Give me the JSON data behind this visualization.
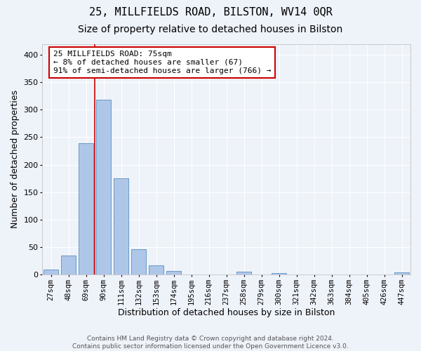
{
  "title": "25, MILLFIELDS ROAD, BILSTON, WV14 0QR",
  "subtitle": "Size of property relative to detached houses in Bilston",
  "xlabel": "Distribution of detached houses by size in Bilston",
  "ylabel": "Number of detached properties",
  "bar_labels": [
    "27sqm",
    "48sqm",
    "69sqm",
    "90sqm",
    "111sqm",
    "132sqm",
    "153sqm",
    "174sqm",
    "195sqm",
    "216sqm",
    "237sqm",
    "258sqm",
    "279sqm",
    "300sqm",
    "321sqm",
    "342sqm",
    "363sqm",
    "384sqm",
    "405sqm",
    "426sqm",
    "447sqm"
  ],
  "bar_values": [
    9,
    34,
    239,
    318,
    175,
    46,
    16,
    6,
    0,
    0,
    0,
    5,
    0,
    3,
    0,
    0,
    0,
    0,
    0,
    0,
    4
  ],
  "bar_color": "#aec6e8",
  "bar_edge_color": "#5a8fc0",
  "vline_x": 2.5,
  "vline_color": "#cc0000",
  "annotation_text": "25 MILLFIELDS ROAD: 75sqm\n← 8% of detached houses are smaller (67)\n91% of semi-detached houses are larger (766) →",
  "annotation_box_color": "#ffffff",
  "annotation_box_edge": "#cc0000",
  "ylim": [
    0,
    420
  ],
  "yticks": [
    0,
    50,
    100,
    150,
    200,
    250,
    300,
    350,
    400
  ],
  "footer_text": "Contains HM Land Registry data © Crown copyright and database right 2024.\nContains public sector information licensed under the Open Government Licence v3.0.",
  "bg_color": "#eef2f9",
  "plot_bg_color": "#eef2f9",
  "grid_color": "#ffffff",
  "title_fontsize": 11,
  "subtitle_fontsize": 10,
  "tick_fontsize": 7.5,
  "ylabel_fontsize": 9,
  "xlabel_fontsize": 9,
  "annotation_fontsize": 8,
  "footer_fontsize": 6.5
}
